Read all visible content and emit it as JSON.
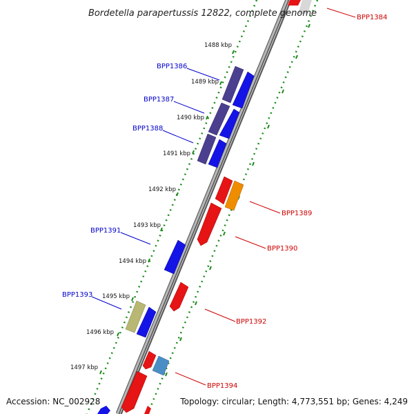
{
  "title": "Bordetella parapertussis 12822, complete genome",
  "accession": "Accession: NC_002928",
  "summary": "Topology: circular; Length: 4,773,551 bp; Genes: 4,249",
  "colors": {
    "forward_label": "#0000cc",
    "reverse_label": "#cc0000",
    "backbone": "#888888",
    "tick_marks": "#1a8a1a"
  },
  "scale_ticks": [
    {
      "label": "1488 kbp"
    },
    {
      "label": "1489 kbp"
    },
    {
      "label": "1490 kbp"
    },
    {
      "label": "1491 kbp"
    },
    {
      "label": "1492 kbp"
    },
    {
      "label": "1493 kbp"
    },
    {
      "label": "1494 kbp"
    },
    {
      "label": "1495 kbp"
    },
    {
      "label": "1496 kbp"
    },
    {
      "label": "1497 kbp"
    }
  ],
  "gene_labels": [
    {
      "name": "BPP1384",
      "strand": "reverse"
    },
    {
      "name": "BPP1386",
      "strand": "forward"
    },
    {
      "name": "BPP1387",
      "strand": "forward"
    },
    {
      "name": "BPP1388",
      "strand": "forward"
    },
    {
      "name": "BPP1389",
      "strand": "reverse"
    },
    {
      "name": "BPP1390",
      "strand": "reverse"
    },
    {
      "name": "BPP1391",
      "strand": "forward"
    },
    {
      "name": "BPP1392",
      "strand": "reverse"
    },
    {
      "name": "BPP1393",
      "strand": "forward"
    },
    {
      "name": "BPP1394",
      "strand": "reverse"
    }
  ]
}
